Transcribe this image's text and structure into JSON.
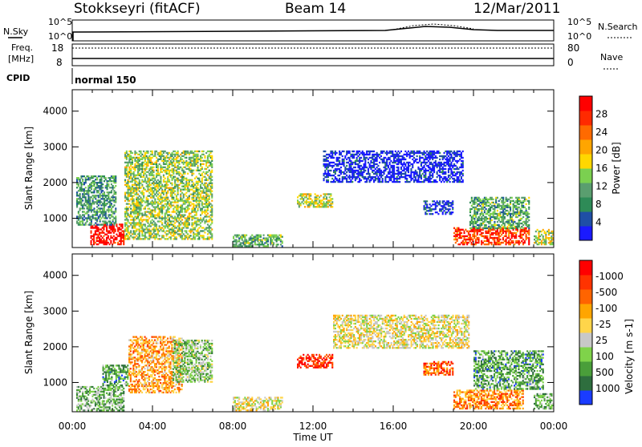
{
  "header": {
    "radar": "Stokkseyri (fitACF)",
    "beam": "Beam 14",
    "date": "12/Mar/2011"
  },
  "strip": {
    "nsky_label": "N.Sky",
    "nsearch_label": "N.Search",
    "nsky_ticks": [
      "10^5",
      "10^0"
    ],
    "nsearch_ticks": [
      "10^5",
      "10^0"
    ],
    "freq_label_1": "Freq.",
    "freq_label_2": "[MHz]",
    "freq_ticks": [
      "18",
      "8"
    ],
    "nave_label": "Nave",
    "nave_ticks": [
      "80",
      "0"
    ],
    "cpid_label": "CPID",
    "cpid_value": "normal 150"
  },
  "colors": {
    "power_scale": [
      "#1a1aff",
      "#1f4fa6",
      "#2e8b57",
      "#5a9e6f",
      "#7bd050",
      "#ffd700",
      "#ffa500",
      "#ff6a00",
      "#ff2a00",
      "#ff0000"
    ],
    "velocity_scale": [
      "#1a3cff",
      "#2e6e3e",
      "#4a9e3a",
      "#7fd34a",
      "#c8c8c8",
      "#ffd54a",
      "#ffa500",
      "#ff6400",
      "#ff3300",
      "#ff0000"
    ]
  },
  "chart_data": [
    {
      "type": "heatmap",
      "ylabel": "Slant Range [km]",
      "xlabel": "Time UT",
      "x_ticks": [
        "00:00",
        "04:00",
        "08:00",
        "12:00",
        "16:00",
        "20:00",
        "00:00"
      ],
      "y_ticks": [
        "1000",
        "2000",
        "3000",
        "4000"
      ],
      "ylim": [
        180,
        4600
      ],
      "xlim_hours": [
        0,
        24
      ],
      "colorbar": {
        "label": "Power [dB]",
        "ticks": [
          "4",
          "8",
          "12",
          "16",
          "20",
          "24",
          "28"
        ]
      },
      "regions": [
        {
          "t0": 0.9,
          "t1": 2.6,
          "r0": 250,
          "r1": 850,
          "level": 0.95
        },
        {
          "t0": 0.2,
          "t1": 2.2,
          "r0": 800,
          "r1": 2200,
          "level": 0.3
        },
        {
          "t0": 2.6,
          "t1": 7.0,
          "r0": 400,
          "r1": 2900,
          "level": 0.45
        },
        {
          "t0": 8.0,
          "t1": 10.5,
          "r0": 200,
          "r1": 550,
          "level": 0.35
        },
        {
          "t0": 11.2,
          "t1": 13.0,
          "r0": 1300,
          "r1": 1700,
          "level": 0.5
        },
        {
          "t0": 12.5,
          "t1": 19.5,
          "r0": 2000,
          "r1": 2900,
          "level": 0.05
        },
        {
          "t0": 17.5,
          "t1": 19.0,
          "r0": 1100,
          "r1": 1500,
          "level": 0.1
        },
        {
          "t0": 19.0,
          "t1": 22.8,
          "r0": 250,
          "r1": 750,
          "level": 0.85
        },
        {
          "t0": 19.8,
          "t1": 22.8,
          "r0": 700,
          "r1": 1600,
          "level": 0.35
        },
        {
          "t0": 23.0,
          "t1": 24.0,
          "r0": 250,
          "r1": 700,
          "level": 0.5
        }
      ]
    },
    {
      "type": "heatmap",
      "ylabel": "Slant Range [km]",
      "xlabel": "Time UT",
      "x_ticks": [
        "00:00",
        "04:00",
        "08:00",
        "12:00",
        "16:00",
        "20:00",
        "00:00"
      ],
      "y_ticks": [
        "1000",
        "2000",
        "3000",
        "4000"
      ],
      "ylim": [
        180,
        4600
      ],
      "xlim_hours": [
        0,
        24
      ],
      "colorbar": {
        "label": "Velocity [m s-1]",
        "ticks": [
          "1000",
          "500",
          "100",
          "25",
          "-25",
          "-100",
          "-500",
          "-1000"
        ]
      },
      "regions": [
        {
          "t0": 0.2,
          "t1": 2.6,
          "r0": 200,
          "r1": 900,
          "level": 0.3
        },
        {
          "t0": 1.5,
          "t1": 2.8,
          "r0": 900,
          "r1": 1500,
          "level": 0.25
        },
        {
          "t0": 2.8,
          "t1": 5.5,
          "r0": 700,
          "r1": 2300,
          "level": 0.65
        },
        {
          "t0": 5.0,
          "t1": 7.0,
          "r0": 1000,
          "r1": 2200,
          "level": 0.35
        },
        {
          "t0": 8.0,
          "t1": 10.5,
          "r0": 200,
          "r1": 600,
          "level": 0.5
        },
        {
          "t0": 11.2,
          "t1": 13.0,
          "r0": 1400,
          "r1": 1800,
          "level": 0.88
        },
        {
          "t0": 13.0,
          "t1": 19.8,
          "r0": 1950,
          "r1": 2900,
          "level": 0.5
        },
        {
          "t0": 17.5,
          "t1": 19.0,
          "r0": 1200,
          "r1": 1600,
          "level": 0.78
        },
        {
          "t0": 19.0,
          "t1": 22.5,
          "r0": 250,
          "r1": 800,
          "level": 0.7
        },
        {
          "t0": 20.0,
          "t1": 23.5,
          "r0": 800,
          "r1": 1900,
          "level": 0.25
        },
        {
          "t0": 23.0,
          "t1": 24.0,
          "r0": 250,
          "r1": 700,
          "level": 0.3
        }
      ]
    }
  ]
}
